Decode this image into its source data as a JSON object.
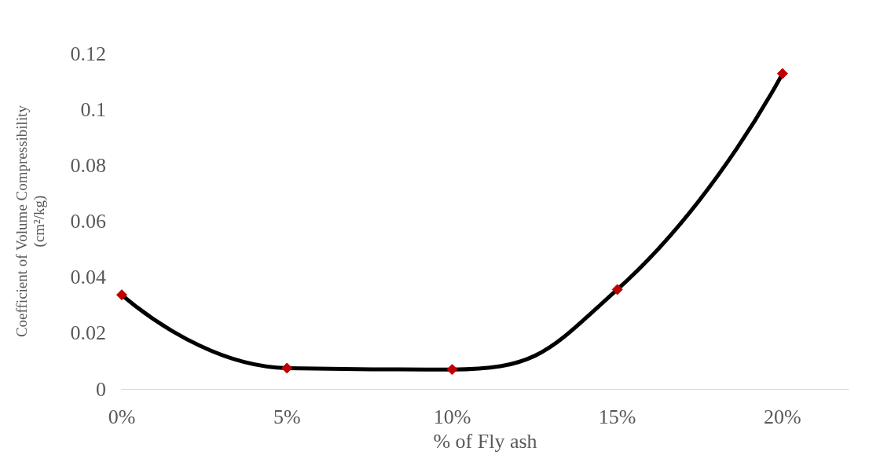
{
  "chart_data": {
    "type": "line",
    "xlabel": "% of Fly ash",
    "ylabel": "Coefficient of Volume Compressibility\n(cm²/kg)",
    "x": [
      0,
      5,
      10,
      15,
      20
    ],
    "series": [
      {
        "color": "#000000",
        "colors": [
          "#c00000",
          "#c00000",
          "#c00000",
          "#c00000",
          "#c00000"
        ],
        "values": [
          0.0337,
          0.0075,
          0.007,
          0.0356,
          0.1128
        ]
      }
    ],
    "xlim": [
      0,
      22
    ],
    "xticks": [
      {
        "value": 0,
        "label": "0%"
      },
      {
        "value": 5,
        "label": "5%"
      },
      {
        "value": 10,
        "label": "10%"
      },
      {
        "value": 15,
        "label": "15%"
      },
      {
        "value": 20,
        "label": "20%"
      }
    ],
    "ylim": [
      0,
      0.12
    ],
    "yticks": [
      0,
      0.02,
      0.04,
      0.06,
      0.08,
      0.1,
      0.12
    ],
    "grid": false,
    "marker": "diamond",
    "line_style": "solid"
  }
}
